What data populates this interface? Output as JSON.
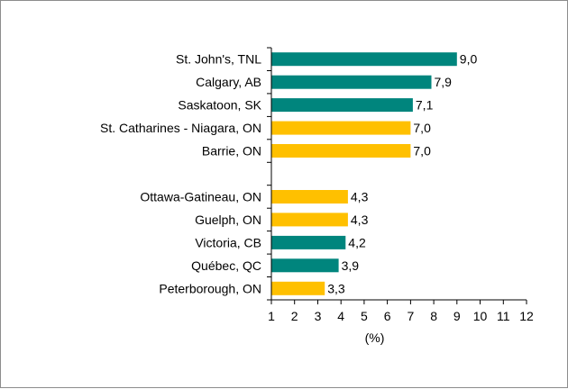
{
  "chart_data": {
    "type": "bar",
    "orientation": "horizontal",
    "categories": [
      "St. John's, TNL",
      "Calgary, AB",
      "Saskatoon, SK",
      "St. Catharines - Niagara, ON",
      "Barrie, ON",
      "",
      "Ottawa-Gatineau, ON",
      "Guelph, ON",
      "Victoria, CB",
      "Québec, QC",
      "Peterborough, ON"
    ],
    "values": [
      9.0,
      7.9,
      7.1,
      7.0,
      7.0,
      null,
      4.3,
      4.3,
      4.2,
      3.9,
      3.3
    ],
    "value_labels": [
      "9,0",
      "7,9",
      "7,1",
      "7,0",
      "7,0",
      "",
      "4,3",
      "4,3",
      "4,2",
      "3,9",
      "3,3"
    ],
    "bar_colors": [
      "#00857d",
      "#00857d",
      "#00857d",
      "#ffc000",
      "#ffc000",
      null,
      "#ffc000",
      "#ffc000",
      "#00857d",
      "#00857d",
      "#ffc000"
    ],
    "xlim": [
      1,
      12
    ],
    "xticks": [
      "1",
      "2",
      "3",
      "4",
      "5",
      "6",
      "7",
      "8",
      "9",
      "10",
      "11",
      "12"
    ],
    "xlabel": "(%)",
    "grid": false
  }
}
